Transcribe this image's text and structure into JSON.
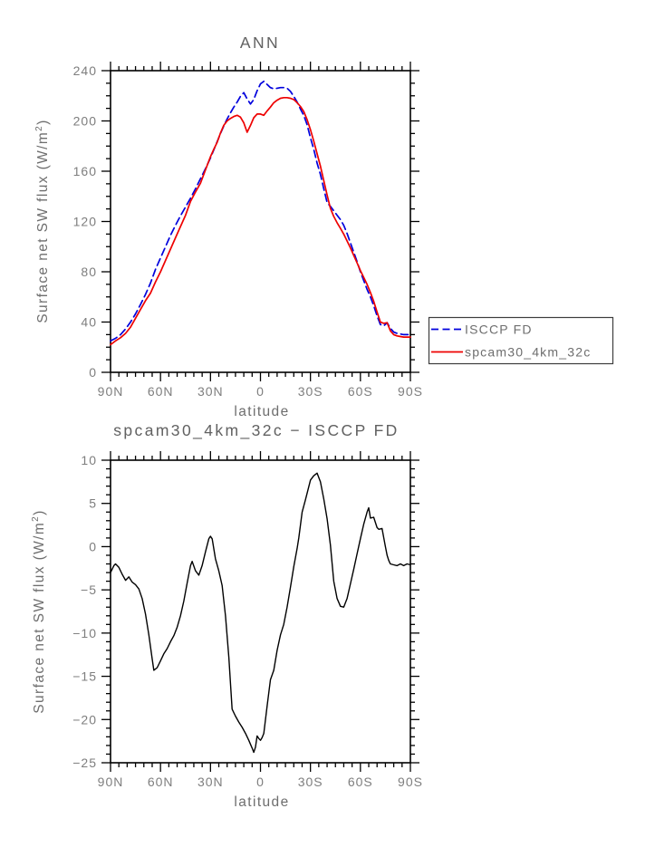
{
  "figure_background": "#ffffff",
  "chart_data": [
    {
      "type": "line",
      "title": "ANN",
      "xlabel": "latitude",
      "ylabel": "Surface net SW flux (W/m2)",
      "ylabel_prefix": "Surface net SW flux (W/m",
      "ylabel_sup": "2",
      "ylabel_suffix": ")",
      "xlim": [
        90,
        -90
      ],
      "ylim": [
        0,
        240
      ],
      "x_ticks": [
        90,
        60,
        30,
        0,
        -30,
        -60,
        -90
      ],
      "x_ticklabels": [
        "90N",
        "60N",
        "30N",
        "0",
        "30S",
        "60S",
        "90S"
      ],
      "x_minor_step": 5,
      "y_ticks": [
        0,
        40,
        80,
        120,
        160,
        200,
        240
      ],
      "y_ticklabels": [
        "0",
        "40",
        "80",
        "120",
        "160",
        "200",
        "240"
      ],
      "y_minor_step": 10,
      "grid": false,
      "legend_position": "outside-right",
      "series": [
        {
          "name": "ISCCP FD",
          "color": "#0000dd",
          "style": "dashed",
          "lat": [
            90,
            87,
            84,
            81,
            78,
            75,
            72,
            69,
            66,
            63,
            60,
            57,
            54,
            51,
            48,
            45,
            42,
            39,
            36,
            33,
            30,
            28,
            26,
            24,
            22,
            20,
            18,
            16,
            14,
            12,
            10,
            8,
            6,
            4,
            2,
            0,
            -2,
            -4,
            -6,
            -8,
            -10,
            -12,
            -14,
            -16,
            -18,
            -20,
            -22,
            -24,
            -26,
            -28,
            -30,
            -32,
            -34,
            -36,
            -38,
            -40,
            -42,
            -44,
            -46,
            -48,
            -50,
            -52,
            -54,
            -56,
            -58,
            -60,
            -62,
            -64,
            -66,
            -68,
            -70,
            -72,
            -74,
            -76,
            -78,
            -80,
            -82,
            -84,
            -86,
            -88,
            -90
          ],
          "values": [
            25,
            27,
            30,
            34.5,
            40,
            46.5,
            54,
            62,
            71,
            82,
            91,
            100,
            109,
            117,
            124.5,
            131.5,
            138.5,
            146,
            154,
            162,
            170.5,
            177,
            183.5,
            190,
            196,
            201.5,
            206.5,
            211,
            215,
            219.5,
            222.5,
            217.5,
            213.5,
            217,
            224,
            229.5,
            231.5,
            229,
            226.5,
            225.5,
            226,
            226.5,
            226.5,
            226,
            223.5,
            219.5,
            215,
            209.5,
            204.5,
            197,
            186.5,
            177.5,
            166.5,
            157.5,
            146,
            135,
            132,
            128.5,
            125,
            121.5,
            117,
            110.5,
            103,
            95.5,
            88,
            80,
            73,
            66,
            60,
            53,
            45,
            38,
            37,
            39.5,
            35,
            32,
            31,
            30.5,
            30,
            30,
            30
          ]
        },
        {
          "name": "spcam30_4km_32c",
          "color": "#ee0000",
          "style": "solid",
          "lat": [
            90,
            87,
            84,
            81,
            78,
            75,
            72,
            69,
            66,
            63,
            60,
            57,
            54,
            51,
            48,
            45,
            42,
            39,
            36,
            33,
            30,
            28,
            26,
            24,
            22,
            20,
            18,
            16,
            14,
            12,
            10,
            8,
            6,
            4,
            2,
            0,
            -2,
            -4,
            -6,
            -8,
            -10,
            -12,
            -14,
            -16,
            -18,
            -20,
            -22,
            -24,
            -26,
            -28,
            -30,
            -32,
            -34,
            -36,
            -38,
            -40,
            -42,
            -44,
            -46,
            -48,
            -50,
            -52,
            -54,
            -56,
            -58,
            -60,
            -62,
            -64,
            -66,
            -68,
            -70,
            -72,
            -74,
            -76,
            -78,
            -80,
            -82,
            -84,
            -86,
            -88,
            -90
          ],
          "values": [
            22,
            25,
            27.5,
            31,
            36,
            43,
            50,
            57,
            63,
            72,
            80,
            89,
            98,
            107,
            116,
            125,
            136,
            143.5,
            150.5,
            161,
            171.5,
            177.5,
            183,
            190.5,
            196.5,
            200,
            202,
            203.5,
            204.5,
            203,
            198.5,
            191,
            196.5,
            202.5,
            205.5,
            205.5,
            204.5,
            208,
            211,
            214.5,
            216.5,
            218,
            218.5,
            218.5,
            218,
            217,
            214.5,
            211.5,
            207.5,
            201,
            193,
            184,
            174,
            164,
            152.5,
            141,
            130.5,
            124,
            119,
            114.5,
            110,
            104.5,
            99,
            93,
            87,
            81,
            75.5,
            70,
            63.5,
            56.5,
            48,
            40,
            39,
            39.5,
            33,
            30,
            29,
            28.5,
            28,
            28,
            28
          ]
        }
      ]
    },
    {
      "type": "line",
      "title": "spcam30_4km_32c − ISCCP FD",
      "xlabel": "latitude",
      "ylabel": "Surface net SW flux (W/m2)",
      "ylabel_prefix": "Surface net SW flux (W/m",
      "ylabel_sup": "2",
      "ylabel_suffix": ")",
      "xlim": [
        90,
        -90
      ],
      "ylim": [
        -25,
        10
      ],
      "x_ticks": [
        90,
        60,
        30,
        0,
        -30,
        -60,
        -90
      ],
      "x_ticklabels": [
        "90N",
        "60N",
        "30N",
        "0",
        "30S",
        "60S",
        "90S"
      ],
      "x_minor_step": 5,
      "y_ticks": [
        -25,
        -20,
        -15,
        -10,
        -5,
        0,
        5,
        10
      ],
      "y_ticklabels": [
        "−25",
        "−20",
        "−15",
        "−10",
        "−5",
        "0",
        "5",
        "10"
      ],
      "y_minor_step": 1,
      "grid": false,
      "legend_position": "none",
      "series": [
        {
          "name": "spcam30_4km_32c minus ISCCP FD",
          "color": "#000000",
          "style": "solid",
          "lat": [
            90,
            88,
            87,
            85,
            83,
            81,
            79,
            77,
            75,
            73,
            71,
            69,
            67,
            65,
            64,
            62,
            60,
            58,
            56,
            54,
            52,
            50,
            48,
            46,
            44,
            42,
            41,
            39,
            37,
            35,
            33,
            31,
            30,
            29,
            27,
            25,
            23,
            21,
            19,
            17,
            15,
            13,
            11,
            9,
            7,
            5,
            4,
            3,
            2,
            1,
            0,
            -1,
            -2,
            -4,
            -6,
            -8,
            -10,
            -12,
            -14,
            -16,
            -18,
            -20,
            -22,
            -23,
            -25,
            -27,
            -30,
            -32,
            -34,
            -36,
            -38,
            -40,
            -42,
            -44,
            -46,
            -48,
            -50,
            -52,
            -54,
            -56,
            -58,
            -60,
            -62,
            -64,
            -65,
            -66,
            -68,
            -70,
            -71,
            -73,
            -75,
            -76,
            -77,
            -78,
            -80,
            -82,
            -84,
            -86,
            -88,
            -90
          ],
          "values": [
            -3.0,
            -2.2,
            -2.0,
            -2.4,
            -3.2,
            -3.9,
            -3.5,
            -4.1,
            -4.4,
            -4.9,
            -6.0,
            -7.8,
            -10.2,
            -13.0,
            -14.3,
            -14.0,
            -13.2,
            -12.4,
            -11.8,
            -11.0,
            -10.3,
            -9.3,
            -8.0,
            -6.3,
            -4.2,
            -2.2,
            -1.7,
            -2.8,
            -3.3,
            -2.2,
            -0.6,
            0.9,
            1.2,
            0.9,
            -1.4,
            -2.8,
            -4.5,
            -8.0,
            -12.8,
            -18.8,
            -19.6,
            -20.3,
            -20.9,
            -21.6,
            -22.4,
            -23.3,
            -23.8,
            -23.2,
            -21.9,
            -22.2,
            -22.4,
            -22.1,
            -21.6,
            -18.4,
            -15.4,
            -14.3,
            -12.0,
            -10.2,
            -9.0,
            -7.0,
            -4.7,
            -2.3,
            -0.2,
            1.0,
            4.0,
            5.4,
            7.7,
            8.2,
            8.5,
            7.5,
            5.5,
            3.2,
            0.2,
            -4.0,
            -6.0,
            -6.9,
            -7.0,
            -6.0,
            -4.3,
            -2.6,
            -0.8,
            0.9,
            2.6,
            4.0,
            4.5,
            3.3,
            3.4,
            2.2,
            2.0,
            2.1,
            0.0,
            -1.0,
            -1.6,
            -2.0,
            -2.1,
            -2.2,
            -2.0,
            -2.2,
            -2.0,
            -2.1
          ]
        }
      ]
    }
  ],
  "legend": {
    "sample_dash": "8 4.5"
  }
}
